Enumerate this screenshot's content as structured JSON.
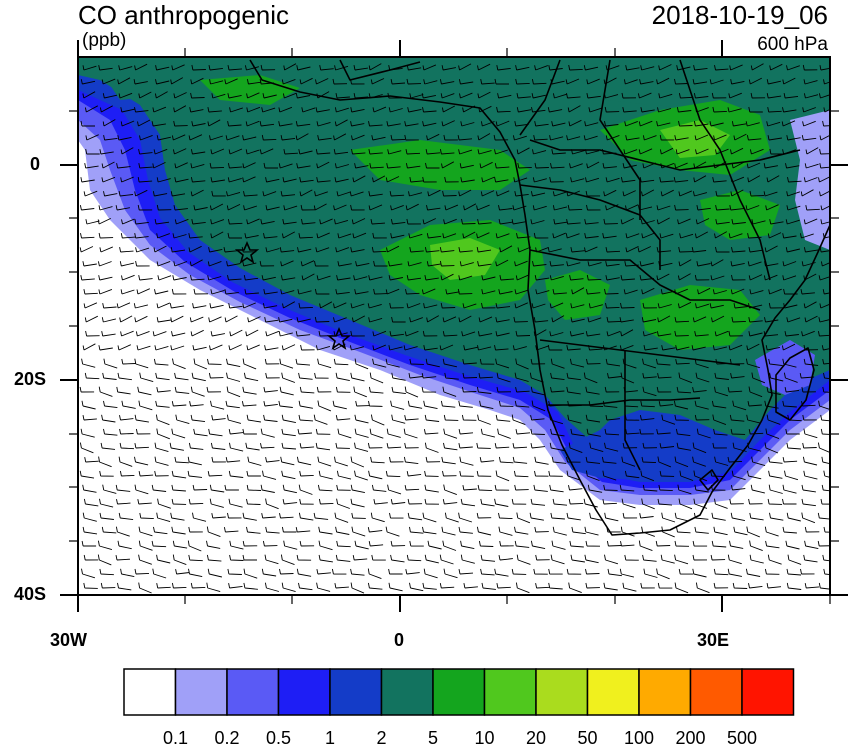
{
  "title": "CO anthropogenic",
  "units": "(ppb)",
  "datetime": "2018-10-19_06",
  "level": "600 hPa",
  "axes": {
    "lat_labels": [
      "0",
      "20S",
      "40S"
    ],
    "lon_labels": [
      "30W",
      "0",
      "30E"
    ]
  },
  "colorbar": {
    "labels": [
      "0.1",
      "0.2",
      "0.5",
      "1",
      "2",
      "5",
      "10",
      "20",
      "50",
      "100",
      "200",
      "500"
    ],
    "colors": [
      "#ffffff",
      "#a0a0f8",
      "#5a5af5",
      "#1e1ef5",
      "#143cc8",
      "#12735f",
      "#14a51e",
      "#50c81e",
      "#aadc1e",
      "#f0f01e",
      "#ffaa00",
      "#ff5a00",
      "#ff1400"
    ]
  },
  "markers": [
    {
      "name": "star-marker",
      "symbol": "star"
    },
    {
      "name": "star-marker",
      "symbol": "star"
    }
  ]
}
